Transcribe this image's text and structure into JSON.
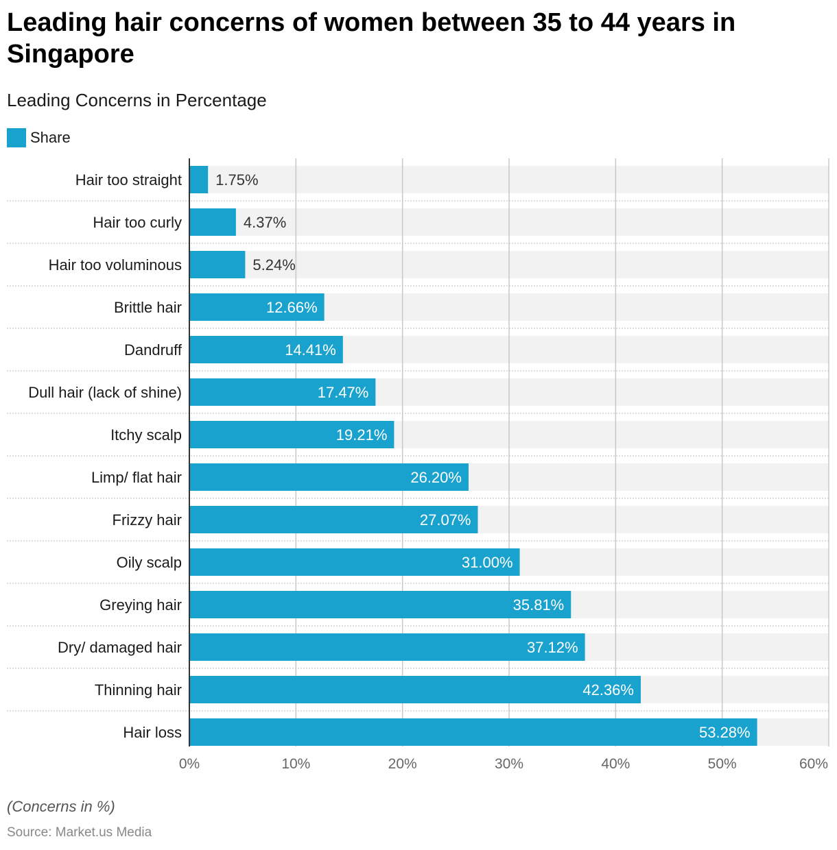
{
  "title": "Leading hair concerns of women between 35 to 44 years in Singapore",
  "subtitle": "Leading Concerns in Percentage",
  "legend": {
    "label": "Share"
  },
  "colors": {
    "bar": "#1aa2ce",
    "track": "#f2f2f2",
    "grid": "#c8c8c8",
    "axis": "#333333",
    "separator": "#bdbdbd",
    "category_text": "#1a1a1a",
    "tick_text": "#666666",
    "label_inside": "#ffffff",
    "label_outside": "#333333"
  },
  "chart_data": {
    "type": "bar",
    "orientation": "horizontal",
    "categories": [
      "Hair too straight",
      "Hair too curly",
      "Hair too voluminous",
      "Brittle hair",
      "Dandruff",
      "Dull hair (lack of shine)",
      "Itchy scalp",
      "Limp/ flat hair",
      "Frizzy hair",
      "Oily scalp",
      "Greying hair",
      "Dry/ damaged hair",
      "Thinning hair",
      "Hair loss"
    ],
    "series": [
      {
        "name": "Share",
        "values": [
          1.75,
          4.37,
          5.24,
          12.66,
          14.41,
          17.47,
          19.21,
          26.2,
          27.07,
          31.0,
          35.81,
          37.12,
          42.36,
          53.28
        ]
      }
    ],
    "data_labels": [
      "1.75%",
      "4.37%",
      "5.24%",
      "12.66%",
      "14.41%",
      "17.47%",
      "19.21%",
      "26.20%",
      "27.07%",
      "31.00%",
      "35.81%",
      "37.12%",
      "42.36%",
      "53.28%"
    ],
    "x_ticks": [
      0,
      10,
      20,
      30,
      40,
      50,
      60
    ],
    "x_tick_labels": [
      "0%",
      "10%",
      "20%",
      "30%",
      "40%",
      "50%",
      "60%"
    ],
    "xlim": [
      0,
      60
    ],
    "grid": true,
    "legend_position": "top-left"
  },
  "footnote": "(Concerns in %)",
  "source": "Source: Market.us Media"
}
